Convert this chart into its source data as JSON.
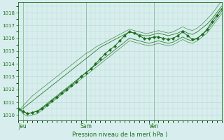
{
  "title": "Pression niveau de la mer( hPa )",
  "ylabel_ticks": [
    1010,
    1011,
    1012,
    1013,
    1014,
    1015,
    1016,
    1017,
    1018
  ],
  "ylim": [
    1009.6,
    1018.8
  ],
  "xlim": [
    0,
    42
  ],
  "day_labels": [
    "Jeu",
    "Sam",
    "Ven"
  ],
  "day_positions": [
    1,
    14,
    28
  ],
  "bg_color": "#d8eeee",
  "grid_color": "#b8d8d0",
  "line_color": "#1a6e1a",
  "marker_color": "#1a6e1a",
  "n_points": 43,
  "main": [
    1010.5,
    1010.3,
    1010.1,
    1010.2,
    1010.3,
    1010.5,
    1010.8,
    1011.1,
    1011.4,
    1011.7,
    1012.0,
    1012.3,
    1012.6,
    1013.0,
    1013.3,
    1013.6,
    1014.0,
    1014.4,
    1014.8,
    1015.1,
    1015.4,
    1015.8,
    1016.2,
    1016.5,
    1016.4,
    1016.2,
    1016.0,
    1016.0,
    1016.1,
    1016.1,
    1016.0,
    1015.9,
    1016.0,
    1016.2,
    1016.5,
    1016.2,
    1015.9,
    1016.0,
    1016.3,
    1016.7,
    1017.3,
    1017.8,
    1018.3
  ],
  "straight1a": [
    1010.3,
    1010.5,
    1010.8,
    1011.1,
    1011.4,
    1011.7,
    1012.0,
    1012.3,
    1012.6,
    1012.9,
    1013.2,
    1013.5,
    1013.8,
    1014.1,
    1014.4,
    1014.7,
    1015.0,
    1015.3,
    1015.5,
    1015.7,
    1015.9,
    1016.1,
    1016.3,
    1016.5,
    1016.4,
    1016.3,
    1016.2,
    1016.2,
    1016.3,
    1016.4,
    1016.3,
    1016.2,
    1016.3,
    1016.4,
    1016.6,
    1016.4,
    1016.3,
    1016.5,
    1016.8,
    1017.1,
    1017.5,
    1018.0,
    1018.5
  ],
  "straight1b": [
    1010.5,
    1010.3,
    1010.1,
    1010.2,
    1010.3,
    1010.6,
    1010.9,
    1011.2,
    1011.5,
    1011.8,
    1012.1,
    1012.4,
    1012.7,
    1013.0,
    1013.3,
    1013.6,
    1013.9,
    1014.2,
    1014.5,
    1014.8,
    1015.1,
    1015.4,
    1015.7,
    1016.0,
    1015.9,
    1015.8,
    1015.7,
    1015.6,
    1015.7,
    1015.8,
    1015.7,
    1015.6,
    1015.7,
    1015.9,
    1016.1,
    1015.9,
    1015.8,
    1016.0,
    1016.3,
    1016.6,
    1017.1,
    1017.6,
    1018.1
  ],
  "straight2a": [
    1010.2,
    1010.7,
    1011.1,
    1011.5,
    1011.8,
    1012.1,
    1012.4,
    1012.7,
    1013.0,
    1013.3,
    1013.6,
    1013.9,
    1014.2,
    1014.5,
    1014.8,
    1015.0,
    1015.3,
    1015.5,
    1015.7,
    1015.9,
    1016.1,
    1016.3,
    1016.5,
    1016.7,
    1016.6,
    1016.5,
    1016.4,
    1016.4,
    1016.5,
    1016.6,
    1016.5,
    1016.4,
    1016.5,
    1016.7,
    1016.9,
    1016.7,
    1016.6,
    1016.8,
    1017.1,
    1017.5,
    1017.9,
    1018.4,
    1018.9
  ],
  "straight2b": [
    1010.6,
    1010.1,
    1009.9,
    1010.0,
    1010.1,
    1010.4,
    1010.7,
    1011.0,
    1011.3,
    1011.6,
    1011.9,
    1012.2,
    1012.5,
    1012.8,
    1013.1,
    1013.4,
    1013.7,
    1014.0,
    1014.3,
    1014.6,
    1014.9,
    1015.2,
    1015.5,
    1015.8,
    1015.7,
    1015.6,
    1015.5,
    1015.4,
    1015.5,
    1015.6,
    1015.5,
    1015.4,
    1015.5,
    1015.7,
    1015.9,
    1015.7,
    1015.6,
    1015.8,
    1016.1,
    1016.4,
    1016.9,
    1017.4,
    1017.9
  ]
}
